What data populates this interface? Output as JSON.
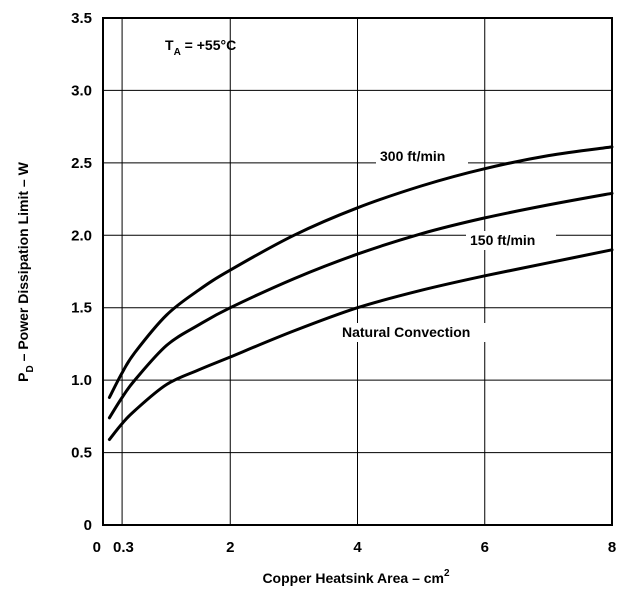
{
  "chart_data": {
    "type": "line",
    "title": "",
    "xlabel": "Copper Heatsink Area – cm",
    "xlabel_superscript": "2",
    "ylabel_prefix": "P",
    "ylabel_subscript": "D",
    "ylabel_rest": " – Power Dissipation Limit – W",
    "annotation": {
      "prefix": "T",
      "subscript": "A",
      "rest": " = +55°C"
    },
    "xlim": [
      0,
      8
    ],
    "ylim": [
      0,
      3.5
    ],
    "x_tick_labels": [
      "0",
      "0.3",
      "2",
      "4",
      "6",
      "8"
    ],
    "y_tick_labels": [
      "0",
      "0.5",
      "1.0",
      "1.5",
      "2.0",
      "2.5",
      "3.0",
      "3.5"
    ],
    "grid": true,
    "series": [
      {
        "name": "300 ft/min",
        "x": [
          0.1,
          0.3,
          0.5,
          1.0,
          1.5,
          2.0,
          3.0,
          4.0,
          5.0,
          6.0,
          7.0,
          8.0
        ],
        "y": [
          0.88,
          1.05,
          1.19,
          1.45,
          1.62,
          1.76,
          2.0,
          2.19,
          2.34,
          2.46,
          2.55,
          2.61
        ]
      },
      {
        "name": "150 ft/min",
        "x": [
          0.1,
          0.3,
          0.5,
          1.0,
          1.5,
          2.0,
          3.0,
          4.0,
          5.0,
          6.0,
          7.0,
          8.0
        ],
        "y": [
          0.74,
          0.88,
          1.0,
          1.24,
          1.38,
          1.5,
          1.7,
          1.87,
          2.01,
          2.12,
          2.21,
          2.29
        ]
      },
      {
        "name": "Natural Convection",
        "x": [
          0.1,
          0.3,
          0.5,
          1.0,
          1.5,
          2.0,
          3.0,
          4.0,
          5.0,
          6.0,
          7.0,
          8.0
        ],
        "y": [
          0.59,
          0.7,
          0.79,
          0.97,
          1.07,
          1.16,
          1.34,
          1.5,
          1.62,
          1.72,
          1.81,
          1.9
        ]
      }
    ]
  }
}
